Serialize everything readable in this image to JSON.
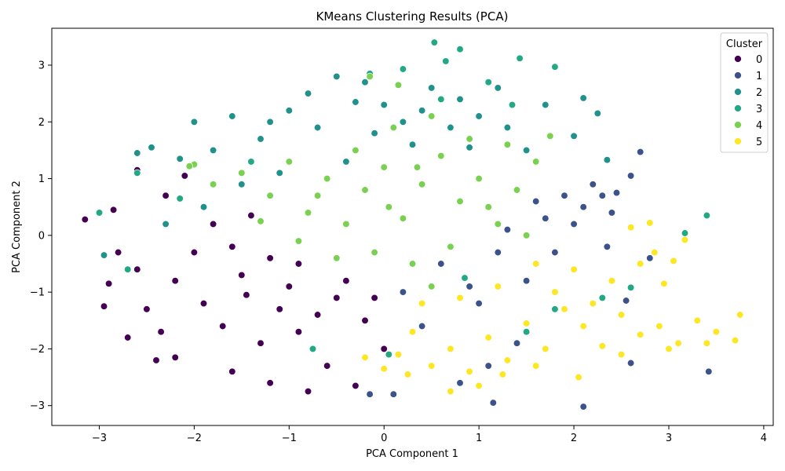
{
  "chart_data": {
    "type": "scatter",
    "title": "KMeans Clustering Results (PCA)",
    "xlabel": "PCA Component 1",
    "ylabel": "PCA Component 2",
    "xlim": [
      -3.5,
      4.1
    ],
    "ylim": [
      -3.35,
      3.65
    ],
    "xticks": [
      -3,
      -2,
      -1,
      0,
      1,
      2,
      3,
      4
    ],
    "yticks": [
      -3,
      -2,
      -1,
      0,
      1,
      2,
      3
    ],
    "grid": false,
    "legend": {
      "title": "Cluster",
      "placement": "top-right"
    },
    "series": [
      {
        "name": "0",
        "color": "#440154",
        "points": [
          [
            -3.15,
            0.28
          ],
          [
            -2.85,
            0.45
          ],
          [
            -2.9,
            -0.85
          ],
          [
            -2.6,
            1.15
          ],
          [
            -2.4,
            -2.2
          ],
          [
            -2.7,
            -1.8
          ],
          [
            -2.2,
            -2.15
          ],
          [
            -1.6,
            -2.4
          ],
          [
            -1.2,
            -2.6
          ],
          [
            -0.8,
            -2.75
          ],
          [
            -0.3,
            -2.65
          ],
          [
            -0.6,
            -2.3
          ],
          [
            -1.9,
            -1.2
          ],
          [
            -1.5,
            -0.7
          ],
          [
            -1.1,
            -1.3
          ],
          [
            -1.8,
            0.2
          ],
          [
            -1.4,
            0.35
          ],
          [
            -2.0,
            -0.3
          ],
          [
            -2.3,
            0.7
          ],
          [
            -2.1,
            1.05
          ],
          [
            -0.9,
            -0.5
          ],
          [
            -0.5,
            -1.1
          ],
          [
            -0.2,
            -1.5
          ],
          [
            0.0,
            -2.0
          ],
          [
            -2.5,
            -1.3
          ],
          [
            -2.2,
            -0.8
          ],
          [
            -1.7,
            -1.6
          ],
          [
            -1.3,
            -1.9
          ],
          [
            -0.9,
            -1.7
          ],
          [
            -1.0,
            -0.9
          ],
          [
            -1.6,
            -0.2
          ],
          [
            -1.2,
            -0.4
          ],
          [
            -2.6,
            -0.6
          ],
          [
            -2.95,
            -1.25
          ],
          [
            -2.8,
            -0.3
          ],
          [
            -0.4,
            -0.8
          ],
          [
            -0.7,
            -1.4
          ],
          [
            -0.1,
            -1.1
          ],
          [
            -2.35,
            -1.7
          ],
          [
            -1.45,
            -1.05
          ]
        ]
      },
      {
        "name": "1",
        "color": "#3b528b",
        "points": [
          [
            0.2,
            -1.0
          ],
          [
            0.6,
            -0.5
          ],
          [
            1.0,
            -1.2
          ],
          [
            1.5,
            -0.8
          ],
          [
            1.8,
            -0.3
          ],
          [
            2.1,
            0.5
          ],
          [
            2.4,
            0.4
          ],
          [
            2.2,
            0.9
          ],
          [
            1.9,
            0.7
          ],
          [
            2.7,
            1.47
          ],
          [
            2.6,
            1.05
          ],
          [
            2.35,
            -0.2
          ],
          [
            2.55,
            -1.15
          ],
          [
            2.1,
            -3.02
          ],
          [
            1.15,
            -2.95
          ],
          [
            0.8,
            -2.6
          ],
          [
            -0.15,
            -2.8
          ],
          [
            0.1,
            -2.8
          ],
          [
            3.42,
            -2.4
          ],
          [
            2.6,
            -2.25
          ],
          [
            1.3,
            0.1
          ],
          [
            1.6,
            0.6
          ],
          [
            2.0,
            0.2
          ],
          [
            2.3,
            0.7
          ],
          [
            1.2,
            -0.3
          ],
          [
            0.4,
            -1.6
          ],
          [
            1.4,
            -1.9
          ],
          [
            0.9,
            -0.9
          ],
          [
            1.7,
            0.3
          ],
          [
            2.45,
            0.75
          ],
          [
            2.8,
            -0.4
          ],
          [
            1.1,
            -2.3
          ]
        ]
      },
      {
        "name": "2",
        "color": "#21918c",
        "points": [
          [
            -2.6,
            1.45
          ],
          [
            -2.45,
            1.55
          ],
          [
            -2.15,
            1.35
          ],
          [
            -2.0,
            2.0
          ],
          [
            -1.8,
            1.5
          ],
          [
            -1.6,
            2.1
          ],
          [
            -1.3,
            1.7
          ],
          [
            -1.0,
            2.2
          ],
          [
            -0.8,
            2.5
          ],
          [
            -0.5,
            2.8
          ],
          [
            -0.2,
            2.7
          ],
          [
            0.0,
            2.3
          ],
          [
            0.2,
            2.0
          ],
          [
            0.5,
            2.6
          ],
          [
            0.8,
            2.4
          ],
          [
            1.0,
            2.1
          ],
          [
            1.3,
            1.9
          ],
          [
            1.5,
            1.5
          ],
          [
            1.7,
            2.3
          ],
          [
            2.0,
            1.75
          ],
          [
            2.1,
            2.42
          ],
          [
            2.25,
            2.15
          ],
          [
            2.35,
            1.33
          ],
          [
            0.3,
            1.6
          ],
          [
            -0.4,
            1.3
          ],
          [
            -1.1,
            1.1
          ],
          [
            -1.5,
            0.9
          ],
          [
            -1.9,
            0.5
          ],
          [
            -2.3,
            0.2
          ],
          [
            -2.95,
            -0.35
          ],
          [
            -0.7,
            1.9
          ],
          [
            -0.1,
            1.8
          ],
          [
            0.7,
            1.9
          ],
          [
            1.2,
            2.6
          ],
          [
            0.4,
            2.2
          ],
          [
            -1.2,
            2.0
          ],
          [
            -0.3,
            2.35
          ],
          [
            0.9,
            1.55
          ]
        ]
      },
      {
        "name": "3",
        "color": "#22a884",
        "points": [
          [
            0.53,
            3.4
          ],
          [
            0.8,
            3.28
          ],
          [
            1.43,
            3.12
          ],
          [
            1.8,
            2.97
          ],
          [
            -0.15,
            2.85
          ],
          [
            0.2,
            2.93
          ],
          [
            0.65,
            3.07
          ],
          [
            3.4,
            0.35
          ],
          [
            3.17,
            0.04
          ],
          [
            -2.6,
            1.1
          ],
          [
            -3.0,
            0.4
          ],
          [
            -2.7,
            -0.6
          ],
          [
            -2.15,
            0.65
          ],
          [
            -0.75,
            -2.0
          ],
          [
            0.05,
            -2.1
          ],
          [
            0.85,
            -0.75
          ],
          [
            1.5,
            -1.7
          ],
          [
            2.3,
            -1.1
          ],
          [
            2.6,
            -0.92
          ],
          [
            1.8,
            -1.3
          ],
          [
            1.35,
            2.3
          ],
          [
            0.6,
            2.4
          ],
          [
            -1.4,
            1.3
          ],
          [
            1.1,
            2.7
          ]
        ]
      },
      {
        "name": "4",
        "color": "#7ad151",
        "points": [
          [
            -2.0,
            1.25
          ],
          [
            -1.8,
            0.9
          ],
          [
            -1.5,
            1.1
          ],
          [
            -1.2,
            0.7
          ],
          [
            -1.0,
            1.3
          ],
          [
            -0.8,
            0.4
          ],
          [
            -0.6,
            1.0
          ],
          [
            -0.4,
            0.2
          ],
          [
            -0.2,
            0.8
          ],
          [
            0.0,
            1.2
          ],
          [
            0.2,
            0.3
          ],
          [
            0.4,
            0.9
          ],
          [
            0.6,
            1.4
          ],
          [
            0.8,
            0.6
          ],
          [
            1.0,
            1.0
          ],
          [
            1.2,
            0.2
          ],
          [
            1.4,
            0.8
          ],
          [
            1.6,
            1.3
          ],
          [
            1.75,
            1.75
          ],
          [
            0.3,
            -0.5
          ],
          [
            -0.1,
            -0.3
          ],
          [
            0.5,
            -0.9
          ],
          [
            0.7,
            -0.2
          ],
          [
            -0.3,
            1.5
          ],
          [
            0.1,
            1.9
          ],
          [
            0.5,
            2.1
          ],
          [
            0.9,
            1.7
          ],
          [
            1.3,
            1.6
          ],
          [
            -0.9,
            -0.1
          ],
          [
            -0.5,
            -0.4
          ],
          [
            0.05,
            0.5
          ],
          [
            -0.7,
            0.7
          ],
          [
            1.1,
            0.5
          ],
          [
            0.35,
            1.2
          ],
          [
            -1.3,
            0.25
          ],
          [
            1.5,
            0.0
          ],
          [
            0.15,
            2.65
          ],
          [
            -0.15,
            2.8
          ],
          [
            -2.05,
            1.22
          ]
        ]
      },
      {
        "name": "5",
        "color": "#fde725",
        "points": [
          [
            3.75,
            -1.4
          ],
          [
            3.7,
            -1.85
          ],
          [
            3.5,
            -1.7
          ],
          [
            3.3,
            -1.5
          ],
          [
            3.1,
            -1.9
          ],
          [
            2.9,
            -1.6
          ],
          [
            2.7,
            -1.75
          ],
          [
            2.5,
            -1.4
          ],
          [
            2.3,
            -1.95
          ],
          [
            2.1,
            -1.6
          ],
          [
            1.9,
            -1.3
          ],
          [
            1.7,
            -2.0
          ],
          [
            1.5,
            -1.55
          ],
          [
            1.3,
            -2.2
          ],
          [
            1.1,
            -1.8
          ],
          [
            0.9,
            -2.4
          ],
          [
            0.7,
            -2.0
          ],
          [
            0.5,
            -2.3
          ],
          [
            0.3,
            -1.7
          ],
          [
            0.15,
            -2.1
          ],
          [
            0.0,
            -2.35
          ],
          [
            0.4,
            -1.2
          ],
          [
            0.8,
            -1.1
          ],
          [
            1.2,
            -0.9
          ],
          [
            1.6,
            -0.5
          ],
          [
            2.0,
            -0.6
          ],
          [
            2.4,
            -0.8
          ],
          [
            2.7,
            -0.5
          ],
          [
            2.85,
            -0.3
          ],
          [
            2.95,
            -0.85
          ],
          [
            3.05,
            -0.45
          ],
          [
            3.17,
            -0.08
          ],
          [
            2.8,
            0.22
          ],
          [
            2.6,
            0.14
          ],
          [
            0.7,
            -2.75
          ],
          [
            1.0,
            -2.65
          ],
          [
            1.25,
            -2.45
          ],
          [
            1.6,
            -2.3
          ],
          [
            2.05,
            -2.5
          ],
          [
            2.5,
            -2.1
          ],
          [
            3.0,
            -2.0
          ],
          [
            3.4,
            -1.9
          ],
          [
            0.25,
            -2.45
          ],
          [
            -0.2,
            -2.15
          ],
          [
            2.2,
            -1.2
          ],
          [
            1.8,
            -1.0
          ]
        ]
      }
    ]
  }
}
